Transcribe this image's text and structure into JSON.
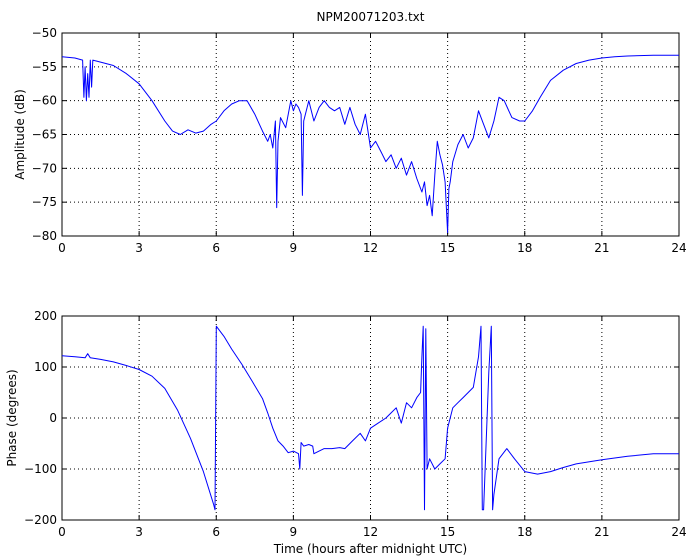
{
  "chart_data": [
    {
      "type": "line",
      "title": "NPM20071203.txt",
      "xlabel": "",
      "ylabel": "Amplitude (dB)",
      "xlim": [
        0,
        24
      ],
      "ylim": [
        -80,
        -50
      ],
      "xticks": [
        0,
        3,
        6,
        9,
        12,
        15,
        18,
        21,
        24
      ],
      "yticks": [
        -80,
        -75,
        -70,
        -65,
        -60,
        -55,
        -50
      ],
      "grid": "dotted",
      "line_color": "#0000ff",
      "series": [
        {
          "x": [
            0,
            0.5,
            0.8,
            0.85,
            0.9,
            0.95,
            1.0,
            1.05,
            1.1,
            1.15,
            1.2,
            1.5,
            2.0,
            2.5,
            3.0,
            3.5,
            4.0,
            4.3,
            4.6,
            4.9,
            5.2,
            5.5,
            5.8,
            6.0,
            6.3,
            6.6,
            6.9,
            7.2,
            7.5,
            7.8,
            8.0,
            8.1,
            8.2,
            8.3,
            8.35,
            8.4,
            8.5,
            8.7,
            8.9,
            9.0,
            9.1,
            9.2,
            9.3,
            9.35,
            9.4,
            9.6,
            9.8,
            10.0,
            10.2,
            10.4,
            10.6,
            10.8,
            11.0,
            11.2,
            11.4,
            11.6,
            11.8,
            12.0,
            12.2,
            12.4,
            12.6,
            12.8,
            13.0,
            13.2,
            13.4,
            13.6,
            13.8,
            14.0,
            14.1,
            14.2,
            14.3,
            14.4,
            14.5,
            14.6,
            14.7,
            14.8,
            14.9,
            15.0,
            15.05,
            15.1,
            15.2,
            15.4,
            15.6,
            15.8,
            16.0,
            16.2,
            16.4,
            16.6,
            16.8,
            17.0,
            17.2,
            17.5,
            17.8,
            18.0,
            18.3,
            18.6,
            19.0,
            19.5,
            20.0,
            20.5,
            21.0,
            21.5,
            22.0,
            23.0,
            24.0
          ],
          "y": [
            -53.5,
            -53.7,
            -54.0,
            -59.5,
            -55.0,
            -60.0,
            -56.0,
            -59.5,
            -54.0,
            -58.0,
            -54.0,
            -54.3,
            -54.8,
            -56.0,
            -57.5,
            -60.0,
            -63.0,
            -64.5,
            -65.0,
            -64.3,
            -64.8,
            -64.5,
            -63.5,
            -63.0,
            -61.5,
            -60.5,
            -60.0,
            -60.0,
            -62.0,
            -64.5,
            -66.0,
            -65.0,
            -67.0,
            -63.0,
            -75.8,
            -66.0,
            -62.5,
            -64.0,
            -60.0,
            -61.5,
            -60.5,
            -61.0,
            -62.0,
            -74.0,
            -63.0,
            -60.0,
            -63.0,
            -61.0,
            -60.0,
            -61.0,
            -61.5,
            -61.0,
            -63.5,
            -61.0,
            -63.5,
            -65.0,
            -62.0,
            -67.0,
            -66.0,
            -67.5,
            -69.0,
            -68.0,
            -70.0,
            -68.5,
            -71.0,
            -69.0,
            -71.5,
            -73.5,
            -72.0,
            -75.5,
            -74.0,
            -77.0,
            -71.0,
            -66.0,
            -68.0,
            -69.5,
            -72.0,
            -79.5,
            -73.0,
            -72.0,
            -69.0,
            -66.5,
            -65.0,
            -67.0,
            -65.5,
            -61.5,
            -63.5,
            -65.5,
            -63.0,
            -59.5,
            -60.0,
            -62.5,
            -63.0,
            -63.0,
            -61.5,
            -59.5,
            -57.0,
            -55.5,
            -54.5,
            -54.0,
            -53.7,
            -53.5,
            -53.4,
            -53.3,
            -53.3
          ]
        }
      ]
    },
    {
      "type": "line",
      "title": "",
      "xlabel": "Time (hours after midnight UTC)",
      "ylabel": "Phase (degrees)",
      "xlim": [
        0,
        24
      ],
      "ylim": [
        -200,
        200
      ],
      "xticks": [
        0,
        3,
        6,
        9,
        12,
        15,
        18,
        21,
        24
      ],
      "yticks": [
        -200,
        -100,
        0,
        100,
        200
      ],
      "grid": "dotted",
      "line_color": "#0000ff",
      "series": [
        {
          "x": [
            0,
            0.5,
            0.9,
            1.0,
            1.1,
            1.5,
            2.0,
            2.5,
            3.0,
            3.5,
            4.0,
            4.5,
            5.0,
            5.5,
            5.9,
            5.95,
            6.0,
            6.3,
            6.6,
            7.0,
            7.4,
            7.8,
            8.0,
            8.2,
            8.4,
            8.6,
            8.8,
            9.0,
            9.2,
            9.25,
            9.3,
            9.4,
            9.6,
            9.75,
            9.8,
            10.0,
            10.2,
            10.5,
            10.8,
            11.0,
            11.3,
            11.6,
            11.8,
            12.0,
            12.3,
            12.6,
            12.8,
            13.0,
            13.2,
            13.4,
            13.6,
            13.8,
            13.95,
            14.0,
            14.05,
            14.1,
            14.15,
            14.2,
            14.3,
            14.5,
            14.7,
            14.9,
            15.0,
            15.2,
            15.4,
            15.6,
            15.8,
            16.0,
            16.2,
            16.3,
            16.35,
            16.4,
            16.6,
            16.7,
            16.75,
            16.8,
            17.0,
            17.3,
            17.6,
            18.0,
            18.5,
            19.0,
            19.5,
            20.0,
            21.0,
            22.0,
            23.0,
            24.0
          ],
          "y": [
            122,
            120,
            118,
            126,
            118,
            115,
            110,
            103,
            95,
            82,
            58,
            15,
            -40,
            -105,
            -170,
            -180,
            180,
            160,
            135,
            105,
            72,
            38,
            10,
            -20,
            -45,
            -55,
            -68,
            -65,
            -70,
            -100,
            -48,
            -55,
            -52,
            -55,
            -70,
            -65,
            -60,
            -60,
            -58,
            -60,
            -45,
            -30,
            -45,
            -20,
            -10,
            0,
            10,
            20,
            -10,
            30,
            20,
            40,
            50,
            120,
            180,
            -180,
            175,
            -100,
            -80,
            -100,
            -90,
            -80,
            -20,
            20,
            30,
            40,
            50,
            60,
            120,
            180,
            -180,
            -180,
            90,
            180,
            -180,
            -150,
            -80,
            -60,
            -80,
            -105,
            -110,
            -105,
            -97,
            -90,
            -82,
            -75,
            -70,
            -70
          ]
        }
      ]
    }
  ]
}
